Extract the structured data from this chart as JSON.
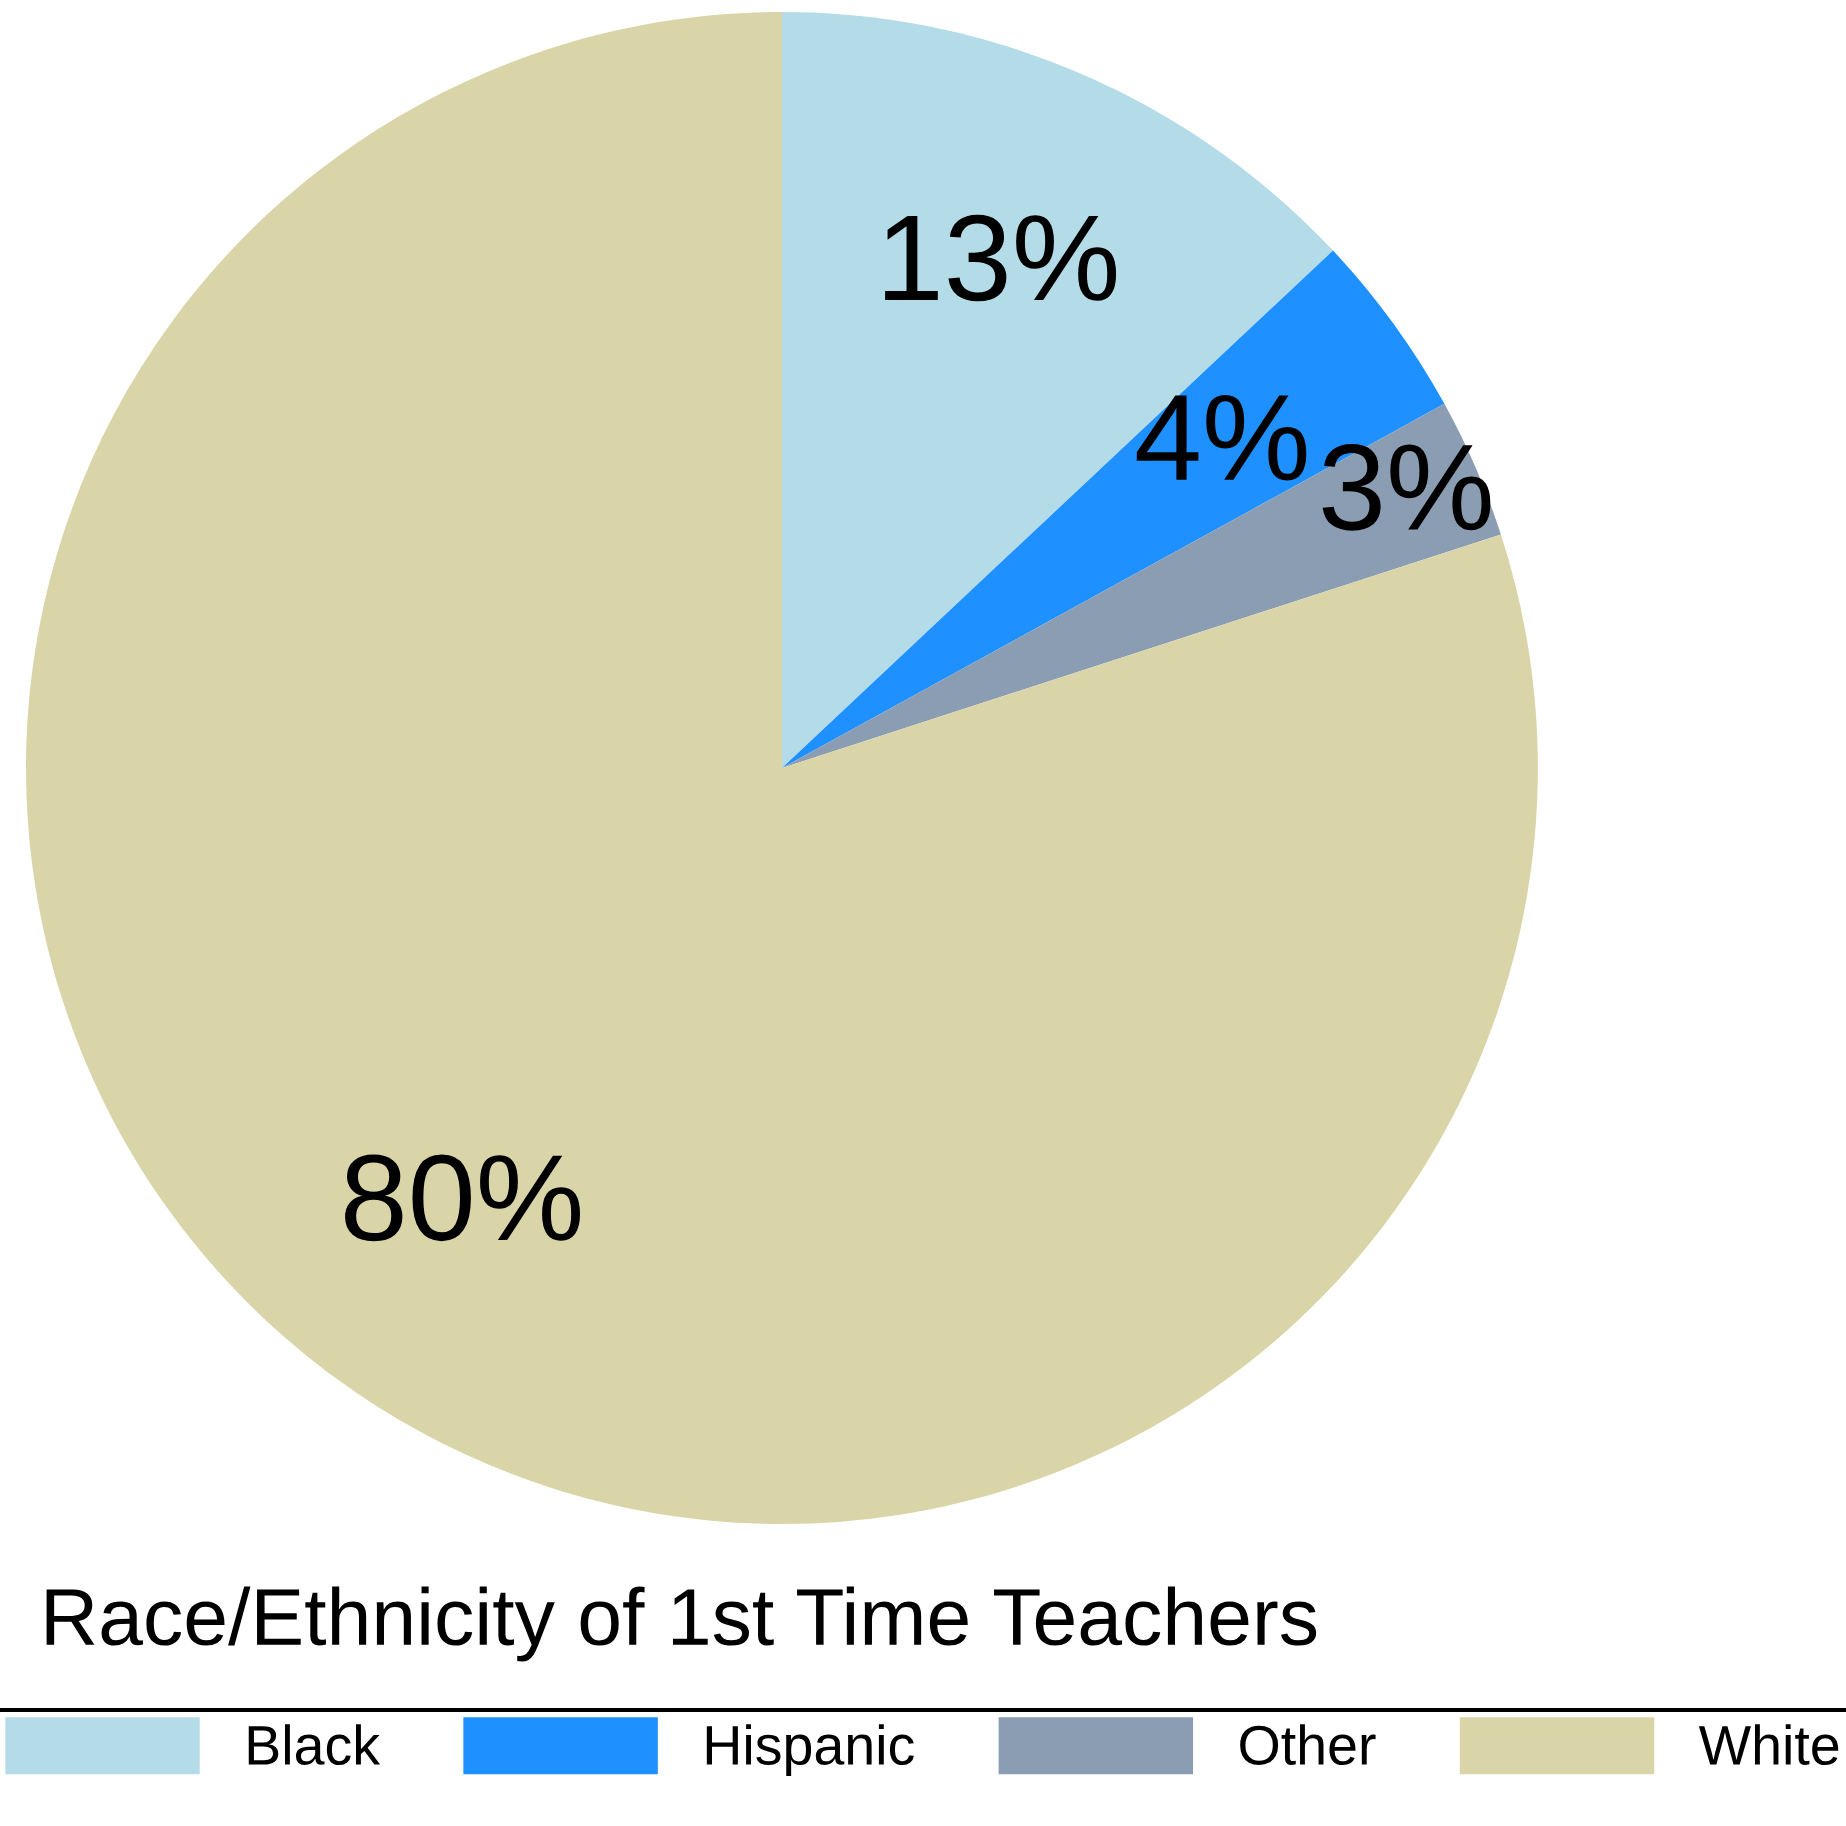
{
  "chart_data": {
    "type": "pie",
    "title": "Race/Ethnicity of 1st Time Teachers",
    "categories": [
      "Black",
      "Hispanic",
      "Other",
      "White"
    ],
    "values": [
      13,
      4,
      3,
      80
    ],
    "colors": [
      "#b4dce8",
      "#1e90ff",
      "#8a9db2",
      "#dad5a8"
    ],
    "value_labels": [
      "13%",
      "4%",
      "3%",
      "80%"
    ],
    "legend": "bottom"
  }
}
